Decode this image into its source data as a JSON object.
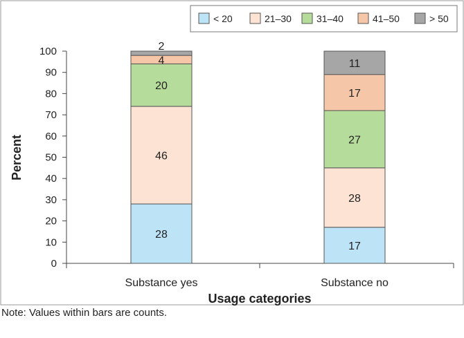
{
  "chart_data": {
    "type": "bar",
    "stacked": true,
    "categories": [
      "Substance yes",
      "Substance no"
    ],
    "series": [
      {
        "name": "< 20",
        "values": [
          28,
          17
        ],
        "labels": [
          "28",
          "17"
        ],
        "color": "#BDE3F7"
      },
      {
        "name": "21–30",
        "values": [
          46,
          28
        ],
        "labels": [
          "46",
          "28"
        ],
        "color": "#FCE3D4"
      },
      {
        "name": "31–40",
        "values": [
          20,
          27
        ],
        "labels": [
          "20",
          "27"
        ],
        "color": "#B6DC9B"
      },
      {
        "name": "41–50",
        "values": [
          4,
          17
        ],
        "labels": [
          "4",
          "17"
        ],
        "color": "#F6C6A8"
      },
      {
        "name": "> 50",
        "values": [
          2,
          11
        ],
        "labels": [
          "2",
          "11"
        ],
        "color": "#A6A6A6"
      }
    ],
    "xlabel": "Usage categories",
    "ylabel": "Percent",
    "ylim": [
      0,
      100
    ],
    "yticks": [
      0,
      10,
      20,
      30,
      40,
      50,
      60,
      70,
      80,
      90,
      100
    ],
    "legend_position": "top-right",
    "grid": false
  },
  "note": "Note: Values within bars are counts."
}
